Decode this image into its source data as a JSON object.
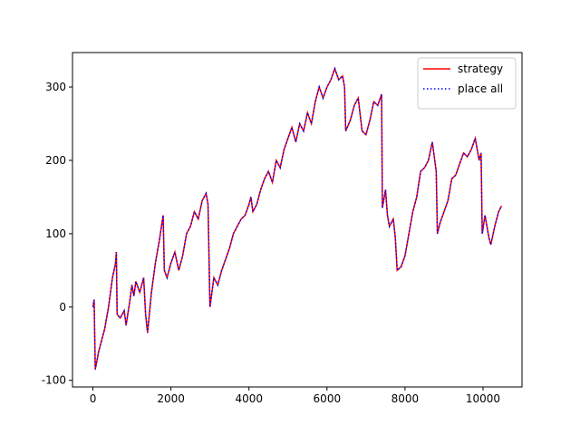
{
  "chart_data": {
    "type": "line",
    "x": [
      0,
      30,
      60,
      150,
      300,
      400,
      500,
      580,
      600,
      620,
      700,
      800,
      850,
      950,
      1000,
      1050,
      1100,
      1200,
      1300,
      1350,
      1400,
      1500,
      1600,
      1700,
      1800,
      1830,
      1900,
      2000,
      2100,
      2200,
      2300,
      2400,
      2500,
      2600,
      2700,
      2800,
      2900,
      2950,
      3000,
      3050,
      3100,
      3200,
      3300,
      3400,
      3500,
      3600,
      3700,
      3800,
      3900,
      4000,
      4050,
      4100,
      4200,
      4300,
      4400,
      4500,
      4600,
      4700,
      4800,
      4900,
      5000,
      5100,
      5200,
      5300,
      5400,
      5500,
      5600,
      5700,
      5800,
      5900,
      6000,
      6100,
      6200,
      6300,
      6400,
      6450,
      6480,
      6600,
      6700,
      6800,
      6900,
      7000,
      7100,
      7200,
      7300,
      7400,
      7420,
      7500,
      7550,
      7600,
      7700,
      7750,
      7800,
      7900,
      8000,
      8100,
      8200,
      8300,
      8400,
      8500,
      8600,
      8700,
      8800,
      8830,
      8900,
      9000,
      9100,
      9200,
      9300,
      9400,
      9500,
      9600,
      9700,
      9800,
      9900,
      9950,
      9980,
      10050,
      10100,
      10150,
      10200,
      10300,
      10400,
      10475
    ],
    "series": [
      {
        "name": "strategy",
        "color": "#ff0000",
        "style": "solid",
        "values": [
          0,
          10,
          -85,
          -60,
          -30,
          0,
          40,
          60,
          75,
          -10,
          -15,
          -5,
          -25,
          10,
          30,
          15,
          35,
          20,
          40,
          -10,
          -35,
          20,
          60,
          90,
          125,
          50,
          40,
          60,
          75,
          50,
          70,
          100,
          110,
          130,
          120,
          145,
          155,
          140,
          0,
          20,
          40,
          30,
          50,
          65,
          80,
          100,
          110,
          120,
          125,
          140,
          150,
          130,
          140,
          160,
          175,
          185,
          170,
          200,
          190,
          215,
          230,
          245,
          225,
          250,
          240,
          265,
          250,
          280,
          300,
          285,
          300,
          310,
          325,
          310,
          315,
          300,
          240,
          255,
          275,
          285,
          240,
          235,
          255,
          280,
          275,
          290,
          135,
          160,
          125,
          110,
          120,
          95,
          50,
          55,
          70,
          100,
          130,
          150,
          185,
          190,
          200,
          225,
          185,
          100,
          115,
          130,
          145,
          175,
          180,
          195,
          210,
          205,
          215,
          230,
          200,
          210,
          100,
          125,
          110,
          95,
          85,
          110,
          130,
          138
        ]
      },
      {
        "name": "place all",
        "color": "#0000ff",
        "style": "dotted",
        "values": [
          0,
          10,
          -85,
          -60,
          -30,
          0,
          40,
          60,
          75,
          -10,
          -15,
          -5,
          -25,
          10,
          30,
          15,
          35,
          20,
          40,
          -10,
          -35,
          20,
          60,
          90,
          125,
          50,
          40,
          60,
          75,
          50,
          70,
          100,
          110,
          130,
          120,
          145,
          155,
          140,
          0,
          20,
          40,
          30,
          50,
          65,
          80,
          100,
          110,
          120,
          125,
          140,
          150,
          130,
          140,
          160,
          175,
          185,
          170,
          200,
          190,
          215,
          230,
          245,
          225,
          250,
          240,
          265,
          250,
          280,
          300,
          285,
          300,
          310,
          325,
          310,
          315,
          300,
          240,
          255,
          275,
          285,
          240,
          235,
          255,
          280,
          275,
          290,
          135,
          160,
          125,
          110,
          120,
          95,
          50,
          55,
          70,
          100,
          130,
          150,
          185,
          190,
          200,
          225,
          185,
          100,
          115,
          130,
          145,
          175,
          180,
          195,
          210,
          205,
          215,
          230,
          200,
          210,
          100,
          125,
          110,
          95,
          85,
          110,
          130,
          138
        ]
      }
    ],
    "xlim": [
      -524,
      10999
    ],
    "ylim": [
      -109,
      347
    ],
    "xticks": [
      0,
      2000,
      4000,
      6000,
      8000,
      10000
    ],
    "yticks": [
      -100,
      0,
      100,
      200,
      300
    ],
    "legend": "upper right"
  }
}
